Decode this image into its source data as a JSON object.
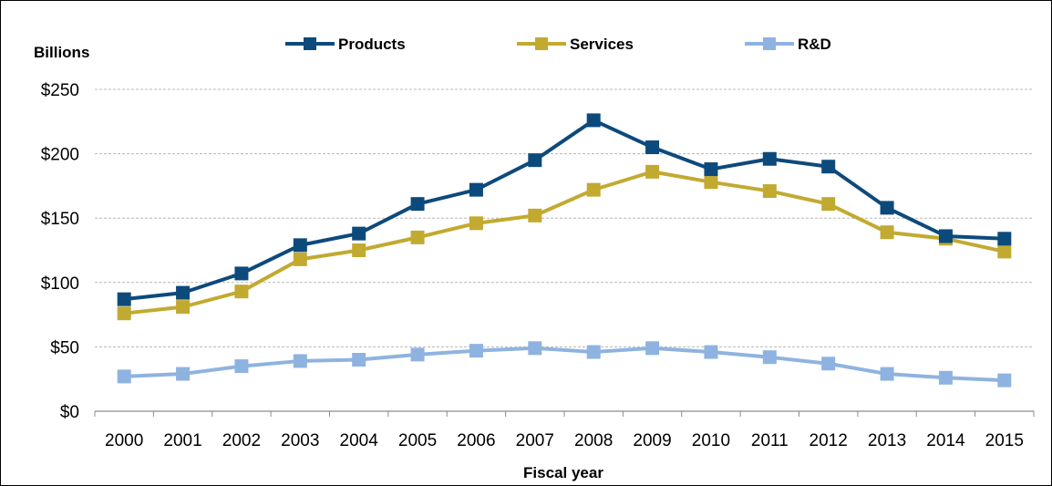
{
  "chart_data": {
    "type": "line",
    "title": "",
    "ylabel": "Billions",
    "xlabel": "Fiscal year",
    "x": [
      "2000",
      "2001",
      "2002",
      "2003",
      "2004",
      "2005",
      "2006",
      "2007",
      "2008",
      "2009",
      "2010",
      "2011",
      "2012",
      "2013",
      "2014",
      "2015"
    ],
    "ylim": [
      0,
      250
    ],
    "yticks": [
      0,
      50,
      100,
      150,
      200,
      250
    ],
    "ytick_labels": [
      "$0",
      "$50",
      "$100",
      "$150",
      "$200",
      "$250"
    ],
    "grid": true,
    "legend_position": "top",
    "series": [
      {
        "name": "Products",
        "color": "#0d4a7c",
        "marker": "square",
        "values": [
          87,
          92,
          107,
          129,
          138,
          161,
          172,
          195,
          226,
          205,
          188,
          196,
          190,
          158,
          136,
          134
        ]
      },
      {
        "name": "Services",
        "color": "#c2aa31",
        "marker": "square",
        "values": [
          76,
          81,
          93,
          118,
          125,
          135,
          146,
          152,
          172,
          186,
          178,
          171,
          161,
          139,
          134,
          124
        ]
      },
      {
        "name": "R&D",
        "color": "#8fb3e0",
        "marker": "square",
        "values": [
          27,
          29,
          35,
          39,
          40,
          44,
          47,
          49,
          46,
          49,
          46,
          42,
          37,
          29,
          26,
          24
        ]
      }
    ]
  }
}
